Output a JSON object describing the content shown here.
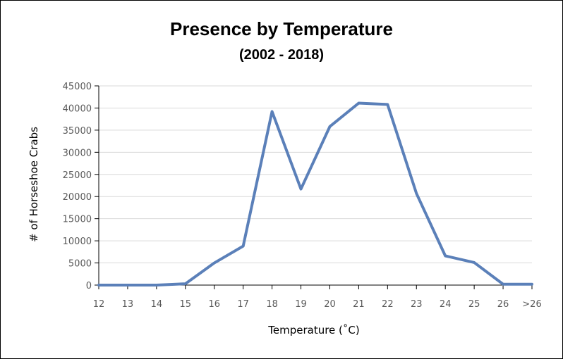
{
  "chart_data": {
    "type": "line",
    "title": "Presence by Temperature",
    "subtitle": "(2002 - 2018)",
    "xlabel": "Temperature (˚C)",
    "ylabel": "# of Horseshoe Crabs",
    "categories": [
      "12",
      "13",
      "14",
      "15",
      "16",
      "17",
      "18",
      "19",
      "20",
      "21",
      "22",
      "23",
      "24",
      "25",
      "26",
      ">26"
    ],
    "series": [
      {
        "values": [
          0,
          0,
          0,
          300,
          5000,
          8800,
          39200,
          21700,
          35800,
          41100,
          40800,
          20700,
          6600,
          5100,
          200,
          200
        ]
      }
    ],
    "ylim": [
      0,
      45000
    ],
    "yticks": [
      0,
      5000,
      10000,
      15000,
      20000,
      25000,
      30000,
      35000,
      40000,
      45000
    ],
    "grid": true,
    "legend": "none",
    "colors": {
      "line": "#5b80b9",
      "grid": "#d9d9d9",
      "axis": "#000000",
      "tick_text": "#595959"
    }
  }
}
